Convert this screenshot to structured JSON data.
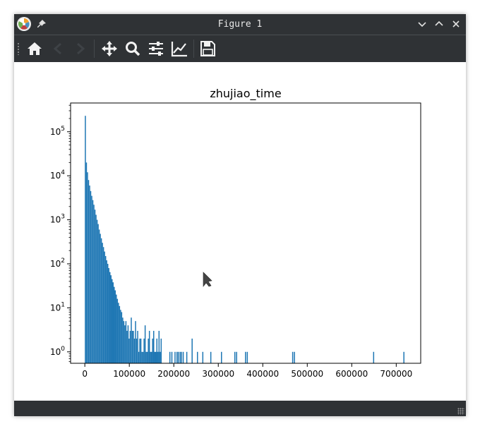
{
  "window": {
    "title": "Figure 1"
  },
  "icons": {
    "app": "matplotlib-logo-icon",
    "pin": "pin-icon",
    "minimize": "chevron-down-icon",
    "maximize": "chevron-up-icon",
    "close": "close-icon",
    "home": "home-icon",
    "back": "arrow-left-icon",
    "forward": "arrow-right-icon",
    "pan": "move-icon",
    "zoom": "search-icon",
    "subplots": "sliders-icon",
    "edit_axes": "chart-line-icon",
    "save": "floppy-disk-icon"
  },
  "colors": {
    "chrome": "#2f3235",
    "bar": "#1f77b4"
  },
  "chart_data": {
    "type": "bar",
    "title": "zhujiao_time",
    "xlabel": "",
    "ylabel": "",
    "yscale": "log",
    "xlim": [
      -32000,
      755000
    ],
    "ylim": [
      0.55,
      450000
    ],
    "xticks": [
      0,
      100000,
      200000,
      300000,
      400000,
      500000,
      600000,
      700000
    ],
    "xtick_labels": [
      "0",
      "100000",
      "200000",
      "300000",
      "400000",
      "500000",
      "600000",
      "700000"
    ],
    "yticks": [
      1,
      10,
      100,
      1000,
      10000,
      100000
    ],
    "ytick_labels": [
      "10^0",
      "10^1",
      "10^2",
      "10^3",
      "10^4",
      "10^5"
    ],
    "bin_width": 2400,
    "series": [
      {
        "x": [
          0,
          2400,
          4800,
          7200,
          9600,
          12000,
          14400,
          16800,
          19200,
          21600,
          24000,
          26400,
          28800,
          31200,
          33600,
          36000,
          38400,
          40800,
          43200,
          45600,
          48000,
          50400,
          52800,
          55200,
          57600,
          60000,
          62400,
          64800,
          67200,
          69600,
          72000,
          74400,
          76800,
          79200,
          81600,
          84000,
          86400,
          88800,
          91200,
          93600,
          96000,
          98400,
          100800,
          103200,
          105600,
          108000,
          110400,
          112800,
          115200,
          117600,
          120000,
          122400,
          124800,
          127200,
          129600,
          132000,
          134400,
          136800,
          139200,
          141600,
          144000,
          146400,
          148800,
          151200,
          153600,
          156000,
          158400,
          160800,
          163200,
          165600,
          168000,
          170400,
          190000,
          194500,
          201600,
          206000,
          209000,
          213000,
          216000,
          220000,
          228000,
          240000,
          252000,
          264000,
          282000,
          306000,
          336000,
          340000,
          360000,
          364000,
          466000,
          470000,
          648000,
          716000
        ],
        "values": [
          230000,
          20000,
          12000,
          8000,
          6000,
          4500,
          3500,
          2800,
          2200,
          1700,
          1300,
          1000,
          800,
          600,
          480,
          380,
          300,
          240,
          190,
          150,
          120,
          100,
          80,
          65,
          55,
          45,
          38,
          30,
          25,
          20,
          16,
          13,
          11,
          9,
          8,
          6,
          5,
          4,
          5,
          3,
          4,
          2,
          3,
          6,
          3,
          3,
          2,
          5,
          2,
          3,
          1,
          2,
          2,
          1,
          1,
          2,
          4,
          1,
          1,
          2,
          3,
          1,
          1,
          2,
          3,
          1,
          1,
          2,
          1,
          3,
          1,
          2,
          1,
          1,
          1,
          1,
          1,
          1,
          1,
          1,
          1,
          2,
          1,
          1,
          1,
          1,
          1,
          1,
          1,
          1,
          1,
          1,
          1,
          1
        ]
      }
    ]
  }
}
